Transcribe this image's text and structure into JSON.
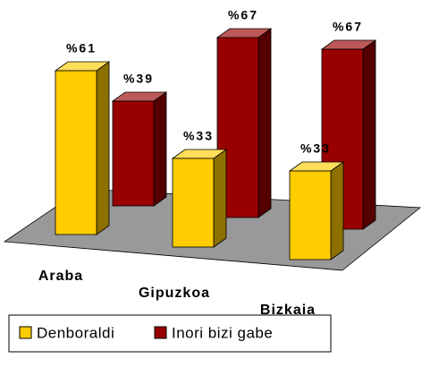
{
  "chart_data": {
    "type": "bar3d",
    "categories": [
      "Araba",
      "Gipuzkoa",
      "Bizkaia"
    ],
    "series": [
      {
        "name": "Denboraldi",
        "color": "#ffcc00",
        "values": [
          61,
          33,
          33
        ],
        "value_labels": [
          "%61",
          "%33",
          "%33"
        ]
      },
      {
        "name": "Inori bizi gabe",
        "color": "#990000",
        "values": [
          39,
          67,
          67
        ],
        "value_labels": [
          "%39",
          "%67",
          "%67"
        ]
      }
    ]
  }
}
